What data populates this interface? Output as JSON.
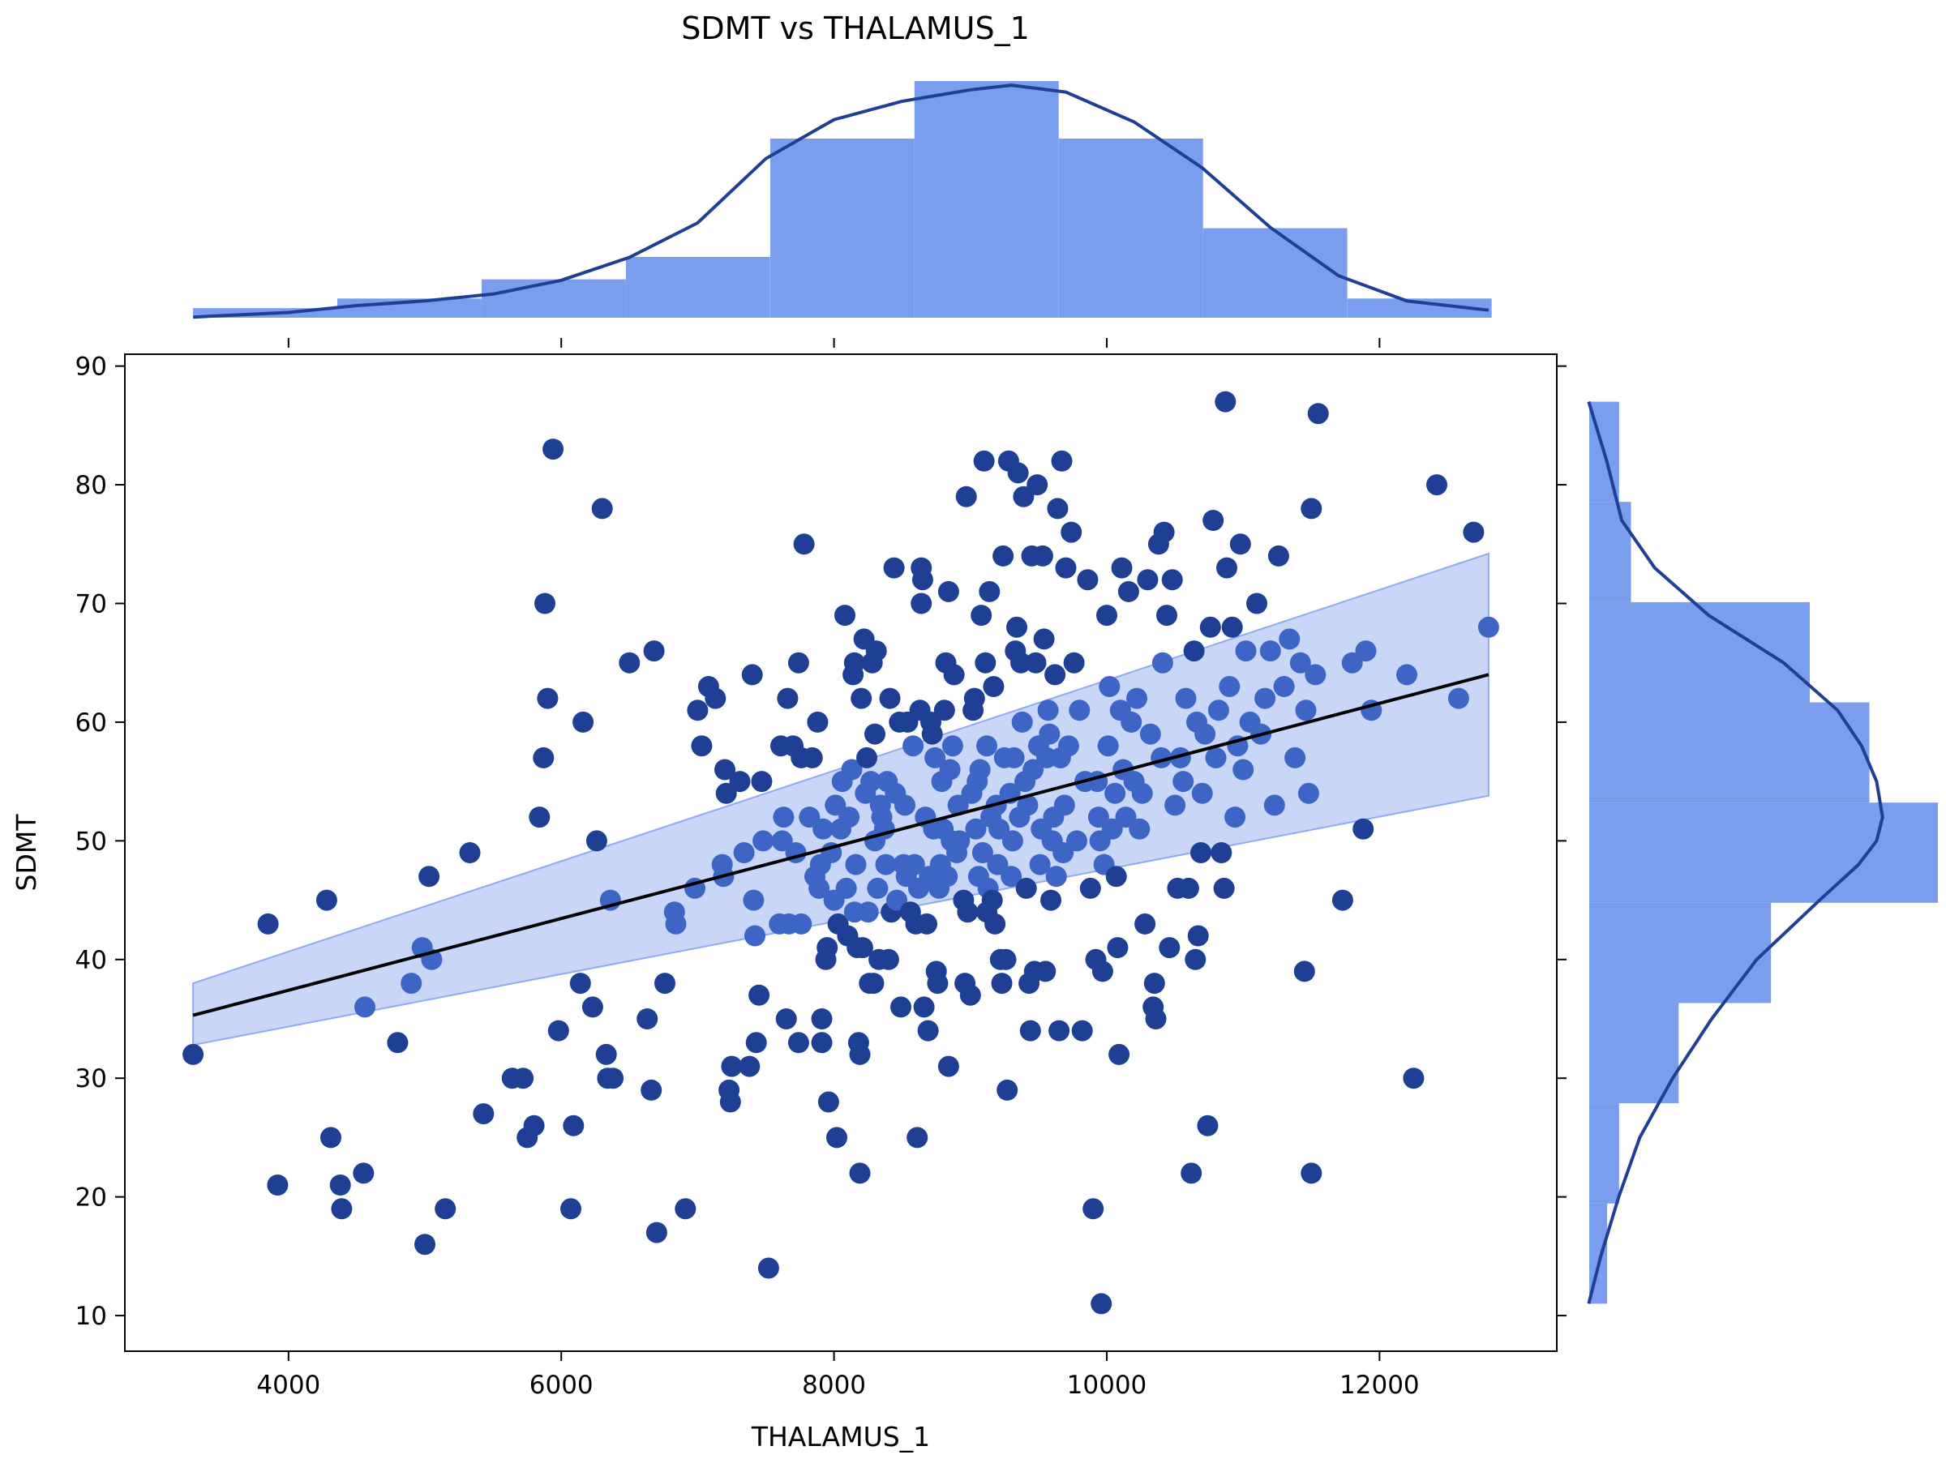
{
  "chart_data": {
    "type": "scatter",
    "title": "SDMT vs THALAMUS_1",
    "xlabel": "THALAMUS_1",
    "ylabel": "SDMT",
    "xlim": [
      2800,
      13300
    ],
    "ylim": [
      7,
      91
    ],
    "x_ticks": [
      "4000",
      "6000",
      "8000",
      "10000",
      "12000"
    ],
    "y_ticks": [
      "10",
      "20",
      "30",
      "40",
      "50",
      "60",
      "70",
      "80",
      "90"
    ],
    "grid": false,
    "legend": "none",
    "colors": {
      "points": "#1f3f95",
      "points_in_band": "#3d65c5",
      "regression_line": "#000000",
      "confidence_band": "#a8bdf2",
      "histogram": "#7a9ded",
      "kde": "#1f3f95"
    },
    "regression": {
      "x": [
        3300,
        12800
      ],
      "y": [
        35.3,
        64.0
      ],
      "band_lower": [
        32.8,
        53.8
      ],
      "band_upper": [
        38.0,
        74.2
      ]
    },
    "points": [
      [
        3300,
        32
      ],
      [
        3850,
        43
      ],
      [
        3920,
        21
      ],
      [
        4280,
        45
      ],
      [
        4310,
        25
      ],
      [
        4380,
        21
      ],
      [
        4390,
        19
      ],
      [
        4550,
        22
      ],
      [
        4560,
        36
      ],
      [
        4800,
        33
      ],
      [
        4900,
        38
      ],
      [
        4980,
        41
      ],
      [
        5000,
        16
      ],
      [
        5030,
        47
      ],
      [
        5050,
        40
      ],
      [
        5150,
        19
      ],
      [
        5330,
        49
      ],
      [
        5430,
        27
      ],
      [
        5640,
        30
      ],
      [
        5720,
        30
      ],
      [
        5750,
        25
      ],
      [
        5800,
        26
      ],
      [
        5840,
        52
      ],
      [
        5870,
        57
      ],
      [
        5880,
        70
      ],
      [
        5900,
        62
      ],
      [
        5940,
        83
      ],
      [
        5980,
        34
      ],
      [
        6070,
        19
      ],
      [
        6090,
        26
      ],
      [
        6140,
        38
      ],
      [
        6160,
        60
      ],
      [
        6230,
        36
      ],
      [
        6260,
        50
      ],
      [
        6300,
        78
      ],
      [
        6330,
        32
      ],
      [
        6340,
        30
      ],
      [
        6360,
        45
      ],
      [
        6380,
        30
      ],
      [
        6500,
        65
      ],
      [
        6630,
        35
      ],
      [
        6660,
        29
      ],
      [
        6680,
        66
      ],
      [
        6700,
        17
      ],
      [
        6760,
        38
      ],
      [
        6830,
        44
      ],
      [
        6840,
        43
      ],
      [
        6910,
        19
      ],
      [
        6980,
        46
      ],
      [
        7000,
        61
      ],
      [
        7030,
        58
      ],
      [
        7080,
        63
      ],
      [
        7130,
        62
      ],
      [
        7180,
        48
      ],
      [
        7190,
        47
      ],
      [
        7200,
        56
      ],
      [
        7210,
        54
      ],
      [
        7230,
        29
      ],
      [
        7240,
        28
      ],
      [
        7250,
        31
      ],
      [
        7310,
        55
      ],
      [
        7340,
        49
      ],
      [
        7380,
        31
      ],
      [
        7400,
        64
      ],
      [
        7410,
        45
      ],
      [
        7420,
        42
      ],
      [
        7430,
        33
      ],
      [
        7450,
        37
      ],
      [
        7470,
        55
      ],
      [
        7480,
        50
      ],
      [
        7520,
        14
      ],
      [
        7600,
        43
      ],
      [
        7610,
        58
      ],
      [
        7620,
        50
      ],
      [
        7630,
        52
      ],
      [
        7650,
        35
      ],
      [
        7660,
        62
      ],
      [
        7670,
        43
      ],
      [
        7700,
        58
      ],
      [
        7720,
        49
      ],
      [
        7740,
        33
      ],
      [
        7740,
        65
      ],
      [
        7760,
        57
      ],
      [
        7760,
        43
      ],
      [
        7780,
        75
      ],
      [
        7820,
        52
      ],
      [
        7840,
        57
      ],
      [
        7860,
        47
      ],
      [
        7880,
        60
      ],
      [
        7890,
        46
      ],
      [
        7900,
        48
      ],
      [
        7910,
        35
      ],
      [
        7910,
        33
      ],
      [
        7920,
        51
      ],
      [
        7940,
        40
      ],
      [
        7950,
        41
      ],
      [
        7960,
        28
      ],
      [
        7980,
        49
      ],
      [
        8000,
        45
      ],
      [
        8010,
        53
      ],
      [
        8020,
        25
      ],
      [
        8030,
        43
      ],
      [
        8050,
        51
      ],
      [
        8060,
        55
      ],
      [
        8080,
        69
      ],
      [
        8090,
        46
      ],
      [
        8100,
        42
      ],
      [
        8110,
        52
      ],
      [
        8130,
        56
      ],
      [
        8140,
        64
      ],
      [
        8150,
        44
      ],
      [
        8150,
        65
      ],
      [
        8160,
        48
      ],
      [
        8170,
        41
      ],
      [
        8180,
        33
      ],
      [
        8190,
        22
      ],
      [
        8190,
        32
      ],
      [
        8200,
        62
      ],
      [
        8210,
        41
      ],
      [
        8220,
        67
      ],
      [
        8230,
        54
      ],
      [
        8240,
        57
      ],
      [
        8250,
        44
      ],
      [
        8260,
        38
      ],
      [
        8270,
        55
      ],
      [
        8280,
        65
      ],
      [
        8290,
        38
      ],
      [
        8300,
        50
      ],
      [
        8300,
        59
      ],
      [
        8310,
        66
      ],
      [
        8320,
        46
      ],
      [
        8330,
        40
      ],
      [
        8340,
        53
      ],
      [
        8350,
        52
      ],
      [
        8370,
        51
      ],
      [
        8380,
        48
      ],
      [
        8390,
        55
      ],
      [
        8400,
        40
      ],
      [
        8410,
        62
      ],
      [
        8420,
        44
      ],
      [
        8440,
        73
      ],
      [
        8450,
        54
      ],
      [
        8460,
        45
      ],
      [
        8480,
        60
      ],
      [
        8490,
        36
      ],
      [
        8510,
        48
      ],
      [
        8520,
        53
      ],
      [
        8530,
        47
      ],
      [
        8540,
        60
      ],
      [
        8560,
        44
      ],
      [
        8580,
        58
      ],
      [
        8590,
        48
      ],
      [
        8600,
        43
      ],
      [
        8610,
        25
      ],
      [
        8620,
        46
      ],
      [
        8630,
        61
      ],
      [
        8640,
        70
      ],
      [
        8640,
        73
      ],
      [
        8650,
        72
      ],
      [
        8660,
        36
      ],
      [
        8670,
        52
      ],
      [
        8680,
        43
      ],
      [
        8690,
        34
      ],
      [
        8700,
        47
      ],
      [
        8710,
        60
      ],
      [
        8720,
        59
      ],
      [
        8730,
        51
      ],
      [
        8740,
        57
      ],
      [
        8750,
        39
      ],
      [
        8760,
        38
      ],
      [
        8770,
        46
      ],
      [
        8780,
        48
      ],
      [
        8790,
        55
      ],
      [
        8800,
        51
      ],
      [
        8810,
        61
      ],
      [
        8820,
        65
      ],
      [
        8830,
        47
      ],
      [
        8840,
        71
      ],
      [
        8840,
        31
      ],
      [
        8850,
        56
      ],
      [
        8860,
        50
      ],
      [
        8870,
        58
      ],
      [
        8880,
        64
      ],
      [
        8900,
        49
      ],
      [
        8910,
        53
      ],
      [
        8920,
        50
      ],
      [
        8950,
        45
      ],
      [
        8960,
        38
      ],
      [
        8970,
        79
      ],
      [
        8980,
        44
      ],
      [
        9000,
        37
      ],
      [
        9010,
        54
      ],
      [
        9020,
        61
      ],
      [
        9030,
        62
      ],
      [
        9040,
        51
      ],
      [
        9050,
        55
      ],
      [
        9060,
        47
      ],
      [
        9070,
        56
      ],
      [
        9080,
        69
      ],
      [
        9090,
        49
      ],
      [
        9100,
        82
      ],
      [
        9110,
        65
      ],
      [
        9120,
        58
      ],
      [
        9120,
        44
      ],
      [
        9130,
        46
      ],
      [
        9140,
        71
      ],
      [
        9150,
        52
      ],
      [
        9160,
        45
      ],
      [
        9170,
        63
      ],
      [
        9180,
        43
      ],
      [
        9190,
        53
      ],
      [
        9200,
        48
      ],
      [
        9210,
        51
      ],
      [
        9220,
        40
      ],
      [
        9230,
        38
      ],
      [
        9240,
        74
      ],
      [
        9250,
        57
      ],
      [
        9260,
        40
      ],
      [
        9270,
        29
      ],
      [
        9280,
        82
      ],
      [
        9290,
        54
      ],
      [
        9300,
        47
      ],
      [
        9310,
        50
      ],
      [
        9320,
        57
      ],
      [
        9330,
        66
      ],
      [
        9340,
        68
      ],
      [
        9350,
        81
      ],
      [
        9360,
        52
      ],
      [
        9370,
        65
      ],
      [
        9380,
        60
      ],
      [
        9390,
        79
      ],
      [
        9400,
        55
      ],
      [
        9410,
        46
      ],
      [
        9420,
        53
      ],
      [
        9430,
        38
      ],
      [
        9440,
        34
      ],
      [
        9450,
        74
      ],
      [
        9460,
        56
      ],
      [
        9470,
        39
      ],
      [
        9480,
        65
      ],
      [
        9490,
        80
      ],
      [
        9500,
        58
      ],
      [
        9510,
        48
      ],
      [
        9520,
        51
      ],
      [
        9530,
        74
      ],
      [
        9540,
        67
      ],
      [
        9550,
        39
      ],
      [
        9560,
        57
      ],
      [
        9570,
        61
      ],
      [
        9580,
        59
      ],
      [
        9590,
        45
      ],
      [
        9600,
        50
      ],
      [
        9610,
        52
      ],
      [
        9620,
        64
      ],
      [
        9630,
        47
      ],
      [
        9640,
        78
      ],
      [
        9650,
        34
      ],
      [
        9660,
        57
      ],
      [
        9670,
        82
      ],
      [
        9680,
        49
      ],
      [
        9690,
        53
      ],
      [
        9700,
        73
      ],
      [
        9720,
        58
      ],
      [
        9740,
        76
      ],
      [
        9760,
        65
      ],
      [
        9780,
        50
      ],
      [
        9800,
        61
      ],
      [
        9820,
        34
      ],
      [
        9840,
        55
      ],
      [
        9860,
        72
      ],
      [
        9880,
        46
      ],
      [
        9900,
        19
      ],
      [
        9920,
        40
      ],
      [
        9930,
        55
      ],
      [
        9940,
        52
      ],
      [
        9950,
        50
      ],
      [
        9960,
        11
      ],
      [
        9970,
        39
      ],
      [
        9980,
        48
      ],
      [
        10000,
        69
      ],
      [
        10010,
        58
      ],
      [
        10020,
        63
      ],
      [
        10040,
        51
      ],
      [
        10060,
        54
      ],
      [
        10070,
        47
      ],
      [
        10080,
        41
      ],
      [
        10090,
        32
      ],
      [
        10100,
        61
      ],
      [
        10110,
        73
      ],
      [
        10120,
        56
      ],
      [
        10140,
        52
      ],
      [
        10160,
        71
      ],
      [
        10180,
        60
      ],
      [
        10200,
        55
      ],
      [
        10220,
        62
      ],
      [
        10240,
        51
      ],
      [
        10260,
        54
      ],
      [
        10280,
        43
      ],
      [
        10300,
        72
      ],
      [
        10320,
        59
      ],
      [
        10340,
        36
      ],
      [
        10350,
        38
      ],
      [
        10360,
        35
      ],
      [
        10380,
        75
      ],
      [
        10400,
        57
      ],
      [
        10410,
        65
      ],
      [
        10420,
        76
      ],
      [
        10440,
        69
      ],
      [
        10460,
        41
      ],
      [
        10480,
        72
      ],
      [
        10500,
        53
      ],
      [
        10520,
        46
      ],
      [
        10540,
        57
      ],
      [
        10560,
        55
      ],
      [
        10580,
        62
      ],
      [
        10600,
        46
      ],
      [
        10620,
        22
      ],
      [
        10640,
        66
      ],
      [
        10650,
        40
      ],
      [
        10660,
        60
      ],
      [
        10670,
        42
      ],
      [
        10690,
        49
      ],
      [
        10700,
        54
      ],
      [
        10720,
        59
      ],
      [
        10740,
        26
      ],
      [
        10760,
        68
      ],
      [
        10780,
        77
      ],
      [
        10800,
        57
      ],
      [
        10820,
        61
      ],
      [
        10840,
        49
      ],
      [
        10860,
        46
      ],
      [
        10870,
        87
      ],
      [
        10880,
        73
      ],
      [
        10900,
        63
      ],
      [
        10920,
        68
      ],
      [
        10940,
        52
      ],
      [
        10960,
        58
      ],
      [
        10980,
        75
      ],
      [
        11000,
        56
      ],
      [
        11020,
        66
      ],
      [
        11050,
        60
      ],
      [
        11100,
        70
      ],
      [
        11130,
        59
      ],
      [
        11160,
        62
      ],
      [
        11200,
        66
      ],
      [
        11230,
        53
      ],
      [
        11260,
        74
      ],
      [
        11300,
        63
      ],
      [
        11340,
        67
      ],
      [
        11380,
        57
      ],
      [
        11420,
        65
      ],
      [
        11450,
        39
      ],
      [
        11460,
        61
      ],
      [
        11480,
        54
      ],
      [
        11500,
        22
      ],
      [
        11500,
        78
      ],
      [
        11530,
        64
      ],
      [
        11550,
        86
      ],
      [
        11730,
        45
      ],
      [
        11800,
        65
      ],
      [
        11880,
        51
      ],
      [
        11900,
        66
      ],
      [
        11940,
        61
      ],
      [
        12200,
        64
      ],
      [
        12250,
        30
      ],
      [
        12420,
        80
      ],
      [
        12580,
        62
      ],
      [
        12690,
        76
      ],
      [
        12800,
        68
      ]
    ],
    "x_histogram": {
      "bin_edges": [
        3300,
        4358,
        5416,
        6474,
        7532,
        8590,
        9648,
        10706,
        11764,
        12822
      ],
      "counts": [
        3,
        6,
        12,
        19,
        56,
        74,
        56,
        28,
        6
      ]
    },
    "y_histogram": {
      "bin_edges": [
        11,
        19.44,
        27.89,
        36.33,
        44.78,
        53.22,
        61.67,
        70.11,
        78.56,
        87
      ],
      "counts": [
        6,
        10,
        30,
        61,
        117,
        94,
        74,
        14,
        10
      ]
    },
    "x_kde": [
      [
        3300,
        0.01
      ],
      [
        4000,
        0.03
      ],
      [
        4500,
        0.06
      ],
      [
        5000,
        0.08
      ],
      [
        5500,
        0.11
      ],
      [
        6000,
        0.17
      ],
      [
        6500,
        0.27
      ],
      [
        7000,
        0.42
      ],
      [
        7500,
        0.7
      ],
      [
        8000,
        0.87
      ],
      [
        8500,
        0.95
      ],
      [
        9000,
        1.0
      ],
      [
        9300,
        1.02
      ],
      [
        9700,
        0.99
      ],
      [
        10200,
        0.86
      ],
      [
        10700,
        0.66
      ],
      [
        11200,
        0.4
      ],
      [
        11700,
        0.19
      ],
      [
        12200,
        0.08
      ],
      [
        12800,
        0.04
      ]
    ],
    "y_kde": [
      [
        11,
        0.02
      ],
      [
        15,
        0.06
      ],
      [
        20,
        0.12
      ],
      [
        25,
        0.19
      ],
      [
        30,
        0.3
      ],
      [
        35,
        0.43
      ],
      [
        40,
        0.58
      ],
      [
        45,
        0.79
      ],
      [
        48,
        0.92
      ],
      [
        50,
        0.98
      ],
      [
        52,
        1.0
      ],
      [
        55,
        0.98
      ],
      [
        58,
        0.93
      ],
      [
        61,
        0.85
      ],
      [
        65,
        0.67
      ],
      [
        69,
        0.42
      ],
      [
        73,
        0.24
      ],
      [
        77,
        0.13
      ],
      [
        82,
        0.08
      ],
      [
        87,
        0.02
      ]
    ]
  }
}
